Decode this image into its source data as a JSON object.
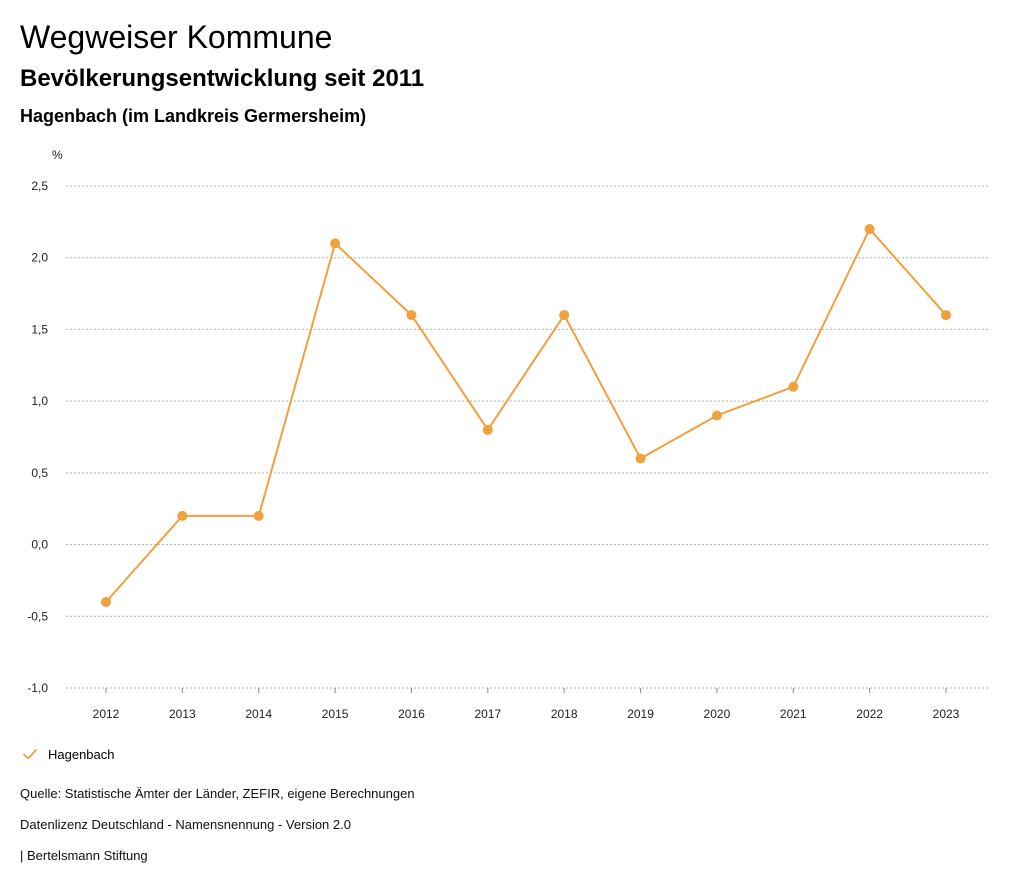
{
  "header": {
    "title": "Wegweiser Kommune",
    "subtitle": "Bevölkerungsentwicklung seit 2011",
    "region": "Hagenbach (im Landkreis Germersheim)"
  },
  "footer": {
    "source": "Quelle: Statistische Ämter der Länder, ZEFIR, eigene Berechnungen",
    "license": "Datenlizenz Deutschland - Namensnennung - Version 2.0",
    "brand": "| Bertelsmann Stiftung"
  },
  "colors": {
    "series": "#f0a03c",
    "grid": "#b0b0b0"
  },
  "chart_data": {
    "type": "line",
    "title": "Bevölkerungsentwicklung seit 2011",
    "xlabel": "",
    "ylabel": "%",
    "categories": [
      "2012",
      "2013",
      "2014",
      "2015",
      "2016",
      "2017",
      "2018",
      "2019",
      "2020",
      "2021",
      "2022",
      "2023"
    ],
    "series": [
      {
        "name": "Hagenbach",
        "values": [
          -0.4,
          0.2,
          0.2,
          2.1,
          1.6,
          0.8,
          1.6,
          0.6,
          0.9,
          1.1,
          2.2,
          1.6
        ]
      }
    ],
    "ylim": [
      -1.0,
      2.5
    ],
    "yticks": [
      -1.0,
      -0.5,
      0.0,
      0.5,
      1.0,
      1.5,
      2.0,
      2.5
    ],
    "ytick_labels": [
      "-1,0",
      "-0,5",
      "0,0",
      "0,5",
      "1,0",
      "1,5",
      "2,0",
      "2,5"
    ],
    "grid": true,
    "legend": "bottom-left"
  }
}
